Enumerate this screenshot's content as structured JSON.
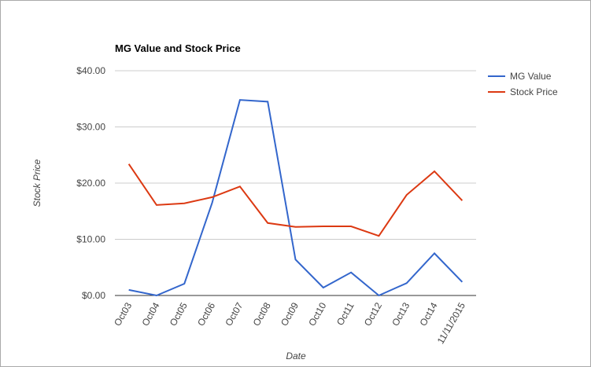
{
  "chart_data": {
    "type": "line",
    "title": "MG Value and Stock Price",
    "x_label": "Date",
    "y_label": "Stock Price",
    "categories": [
      "Oct03",
      "Oct04",
      "Oct05",
      "Oct06",
      "Oct07",
      "Oct08",
      "Oct09",
      "Oct10",
      "Oct11",
      "Oct12",
      "Oct13",
      "Oct14",
      "11/11/2015"
    ],
    "series": [
      {
        "name": "MG Value",
        "color": "#3366cc",
        "values": [
          1.0,
          0,
          2.1,
          16.5,
          34.8,
          34.5,
          6.4,
          1.4,
          4.1,
          0,
          2.2,
          7.5,
          2.4
        ]
      },
      {
        "name": "Stock Price",
        "color": "#dc3912",
        "values": [
          23.4,
          16.1,
          16.4,
          17.5,
          19.4,
          12.9,
          12.2,
          12.3,
          12.3,
          10.6,
          17.9,
          22.1,
          16.9
        ]
      }
    ],
    "ylim": [
      0,
      40
    ],
    "yticks": [
      {
        "value": 0,
        "label": "$0.00"
      },
      {
        "value": 10,
        "label": "$10.00"
      },
      {
        "value": 20,
        "label": "$20.00"
      },
      {
        "value": 30,
        "label": "$30.00"
      },
      {
        "value": 40,
        "label": "$40.00"
      }
    ],
    "grid": true,
    "legend": "right"
  }
}
